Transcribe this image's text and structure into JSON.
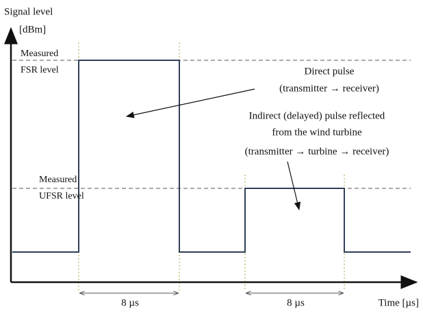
{
  "axes": {
    "y_label": [
      "Signal level",
      "[dBm]"
    ],
    "x_label": "Time [µs]"
  },
  "levels": {
    "fsr": [
      "Measured",
      "FSR level"
    ],
    "ufsr": [
      "Measured",
      "UFSR level"
    ]
  },
  "annotations": {
    "direct": [
      "Direct pulse",
      "(transmitter → receiver)"
    ],
    "indirect": [
      "Indirect (delayed) pulse reflected",
      "from the wind turbine",
      "(transmitter → turbine → receiver)"
    ]
  },
  "durations": [
    "8 µs",
    "8 µs"
  ]
}
